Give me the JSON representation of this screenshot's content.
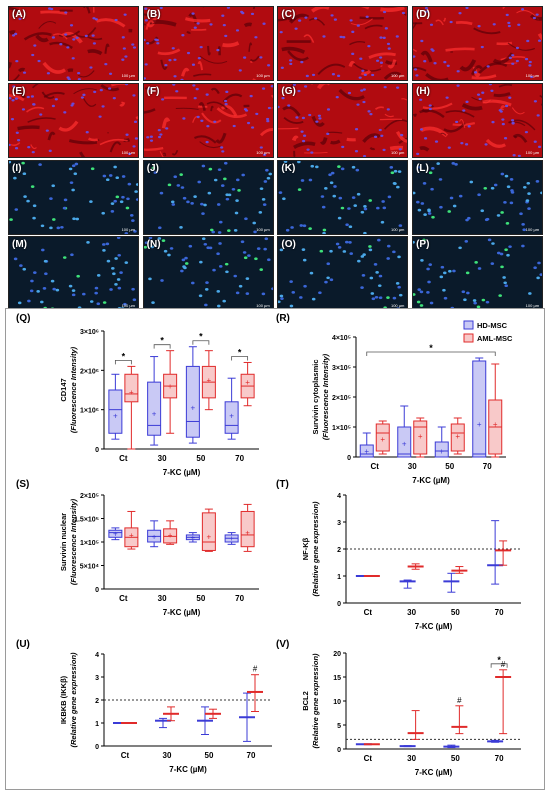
{
  "micrographs": [
    {
      "label": "(A)",
      "stain": "red"
    },
    {
      "label": "(B)",
      "stain": "red"
    },
    {
      "label": "(C)",
      "stain": "red"
    },
    {
      "label": "(D)",
      "stain": "red"
    },
    {
      "label": "(E)",
      "stain": "red"
    },
    {
      "label": "(F)",
      "stain": "red"
    },
    {
      "label": "(G)",
      "stain": "red"
    },
    {
      "label": "(H)",
      "stain": "red"
    },
    {
      "label": "(I)",
      "stain": "blue"
    },
    {
      "label": "(J)",
      "stain": "blue"
    },
    {
      "label": "(K)",
      "stain": "blue"
    },
    {
      "label": "(L)",
      "stain": "blue"
    },
    {
      "label": "(M)",
      "stain": "blue"
    },
    {
      "label": "(N)",
      "stain": "blue"
    },
    {
      "label": "(O)",
      "stain": "blue"
    },
    {
      "label": "(P)",
      "stain": "blue"
    }
  ],
  "scale_bar": "100 µm",
  "legend": {
    "hd": "HD-MSC",
    "aml": "AML-MSC"
  },
  "colors": {
    "hd": "#3b3bd6",
    "aml": "#e02a2a",
    "hd_fill": "#c9c9f5",
    "aml_fill": "#f8c9c9"
  },
  "chart_data": [
    {
      "panel": "(Q)",
      "type": "box",
      "categories": [
        "Ct",
        "30",
        "50",
        "70"
      ],
      "xlabel": "7-KC (µM)",
      "ylabel": [
        "CD147",
        "(Fluorescence Intensity)"
      ],
      "ylim": [
        0,
        3000000
      ],
      "ticks": [
        0,
        1000000,
        2000000,
        3000000
      ],
      "tick_labels": [
        "0",
        "1×10⁶",
        "2×10⁶",
        "3×10⁶"
      ],
      "series": [
        {
          "name": "HD-MSC",
          "boxes": [
            [
              250000,
              400000,
              1000000,
              1500000,
              1900000
            ],
            [
              100000,
              350000,
              600000,
              1700000,
              2350000
            ],
            [
              150000,
              300000,
              700000,
              2100000,
              2600000
            ],
            [
              250000,
              400000,
              600000,
              1200000,
              1800000
            ]
          ],
          "means": [
            850000,
            900000,
            1050000,
            850000
          ]
        },
        {
          "name": "AML-MSC",
          "boxes": [
            [
              0,
              1200000,
              1400000,
              1900000,
              2100000
            ],
            [
              400000,
              1300000,
              1600000,
              1900000,
              2500000
            ],
            [
              1000000,
              1300000,
              1700000,
              2100000,
              2500000
            ],
            [
              1100000,
              1300000,
              1600000,
              1900000,
              2200000
            ]
          ],
          "means": [
            1450000,
            1600000,
            1750000,
            1700000
          ]
        }
      ],
      "sig": [
        {
          "cats": [
            0,
            0
          ],
          "label": "*"
        },
        {
          "cats": [
            1,
            1
          ],
          "label": "*"
        },
        {
          "cats": [
            2,
            2
          ],
          "label": "*"
        },
        {
          "cats": [
            3,
            3
          ],
          "label": "*"
        }
      ]
    },
    {
      "panel": "(R)",
      "type": "box",
      "categories": [
        "Ct",
        "30",
        "50",
        "70"
      ],
      "xlabel": "7-KC (µM)",
      "ylabel": [
        "Survivin cytoplasmic",
        "(Fluorescence Intensity)"
      ],
      "ylim": [
        0,
        400000
      ],
      "ticks": [
        0,
        100000,
        200000,
        300000,
        400000
      ],
      "tick_labels": [
        "0",
        "1×10⁵",
        "2×10⁵",
        "3×10⁵",
        "4×10⁵"
      ],
      "series": [
        {
          "name": "HD-MSC",
          "boxes": [
            [
              0,
              0,
              10000,
              40000,
              80000
            ],
            [
              0,
              0,
              10000,
              100000,
              170000
            ],
            [
              0,
              0,
              20000,
              50000,
              100000
            ],
            [
              0,
              0,
              10000,
              320000,
              330000
            ]
          ],
          "means": [
            20000,
            45000,
            20000,
            110000
          ]
        },
        {
          "name": "AML-MSC",
          "boxes": [
            [
              10000,
              20000,
              80000,
              110000,
              120000
            ],
            [
              0,
              10000,
              100000,
              120000,
              130000
            ],
            [
              10000,
              20000,
              80000,
              110000,
              130000
            ],
            [
              0,
              10000,
              100000,
              190000,
              310000
            ]
          ],
          "means": [
            60000,
            70000,
            70000,
            110000
          ]
        }
      ],
      "sig": [
        {
          "cats": [
            0,
            3
          ],
          "label": "*"
        }
      ]
    },
    {
      "panel": "(S)",
      "type": "box",
      "categories": [
        "Ct",
        "30",
        "50",
        "70"
      ],
      "xlabel": "7-KC (µM)",
      "ylabel": [
        "Survivin nuclear",
        "(Fluorescence Intensity)"
      ],
      "ylim": [
        0,
        200000
      ],
      "ticks": [
        0,
        50000,
        100000,
        150000,
        200000
      ],
      "tick_labels": [
        "0",
        "5×10⁴",
        "1×10⁵",
        "1.5×10⁵",
        "2×10⁵"
      ],
      "series": [
        {
          "name": "HD-MSC",
          "boxes": [
            [
              105000,
              110000,
              120000,
              125000,
              130000
            ],
            [
              90000,
              100000,
              112000,
              125000,
              145000
            ],
            [
              100000,
              105000,
              110000,
              115000,
              120000
            ],
            [
              95000,
              100000,
              108000,
              115000,
              120000
            ]
          ],
          "means": [
            118000,
            112000,
            110000,
            108000
          ]
        },
        {
          "name": "AML-MSC",
          "boxes": [
            [
              85000,
              90000,
              110000,
              130000,
              165000
            ],
            [
              95000,
              98000,
              112000,
              128000,
              145000
            ],
            [
              80000,
              82000,
              100000,
              162000,
              170000
            ],
            [
              80000,
              90000,
              115000,
              165000,
              180000
            ]
          ],
          "means": [
            115000,
            115000,
            112000,
            120000
          ]
        }
      ],
      "sig": []
    },
    {
      "panel": "(T)",
      "type": "errorbar",
      "categories": [
        "Ct",
        "30",
        "50",
        "70"
      ],
      "xlabel": "7-KC (µM)",
      "ylabel": [
        "NF-Kβ",
        "(Relative gene expression)"
      ],
      "ylim": [
        0,
        4
      ],
      "ticks": [
        0,
        1,
        2,
        3,
        4
      ],
      "tick_labels": [
        "0",
        "1",
        "2",
        "3",
        "4"
      ],
      "ref_line": 2,
      "series": [
        {
          "name": "HD-MSC",
          "mean": [
            1.0,
            0.8,
            0.8,
            1.4
          ],
          "low": [
            1.0,
            0.55,
            0.4,
            0.7
          ],
          "high": [
            1.0,
            0.85,
            1.1,
            3.05
          ]
        },
        {
          "name": "AML-MSC",
          "mean": [
            1.0,
            1.35,
            1.2,
            1.95
          ],
          "low": [
            1.0,
            1.25,
            1.1,
            1.4
          ],
          "high": [
            1.0,
            1.45,
            1.35,
            2.3
          ]
        }
      ],
      "sig": []
    },
    {
      "panel": "(U)",
      "type": "errorbar",
      "categories": [
        "Ct",
        "30",
        "50",
        "70"
      ],
      "xlabel": "7-KC (µM)",
      "ylabel": [
        "IKBKB (IKKβ)",
        "(Relative gene expression)"
      ],
      "ylim": [
        0,
        4
      ],
      "ticks": [
        0,
        1,
        2,
        3,
        4
      ],
      "tick_labels": [
        "0",
        "1",
        "2",
        "3",
        "4"
      ],
      "ref_line": 2,
      "series": [
        {
          "name": "HD-MSC",
          "mean": [
            1.0,
            1.1,
            1.1,
            1.25
          ],
          "low": [
            1.0,
            0.8,
            0.5,
            0.2
          ],
          "high": [
            1.0,
            1.2,
            1.7,
            2.3
          ]
        },
        {
          "name": "AML-MSC",
          "mean": [
            1.0,
            1.4,
            1.4,
            2.35
          ],
          "low": [
            1.0,
            1.1,
            1.2,
            1.5
          ],
          "high": [
            1.0,
            1.7,
            1.6,
            3.1
          ]
        }
      ],
      "sig": [
        {
          "cat": 3,
          "label": "#"
        }
      ]
    },
    {
      "panel": "(V)",
      "type": "errorbar",
      "categories": [
        "Ct",
        "30",
        "50",
        "70"
      ],
      "xlabel": "7-KC (µM)",
      "ylabel": [
        "BCL2",
        "(Relative gene expression)"
      ],
      "ylim": [
        0,
        20
      ],
      "ticks": [
        0,
        5,
        10,
        15,
        20
      ],
      "tick_labels": [
        "0",
        "5",
        "10",
        "15",
        "20"
      ],
      "ref_line": 2,
      "series": [
        {
          "name": "HD-MSC",
          "mean": [
            1.0,
            0.6,
            0.5,
            1.6
          ],
          "low": [
            1.0,
            0.5,
            0.3,
            1.4
          ],
          "high": [
            1.0,
            0.7,
            0.8,
            1.8
          ]
        },
        {
          "name": "AML-MSC",
          "mean": [
            1.0,
            3.3,
            4.6,
            15.0
          ],
          "low": [
            1.0,
            2.0,
            3.2,
            3.2
          ],
          "high": [
            1.0,
            8.0,
            9.0,
            16.5
          ]
        }
      ],
      "sig": [
        {
          "cat": 2,
          "label": "#"
        },
        {
          "cat": 3,
          "label": "#"
        },
        {
          "cats": [
            3,
            3
          ],
          "label": "*"
        }
      ]
    }
  ]
}
